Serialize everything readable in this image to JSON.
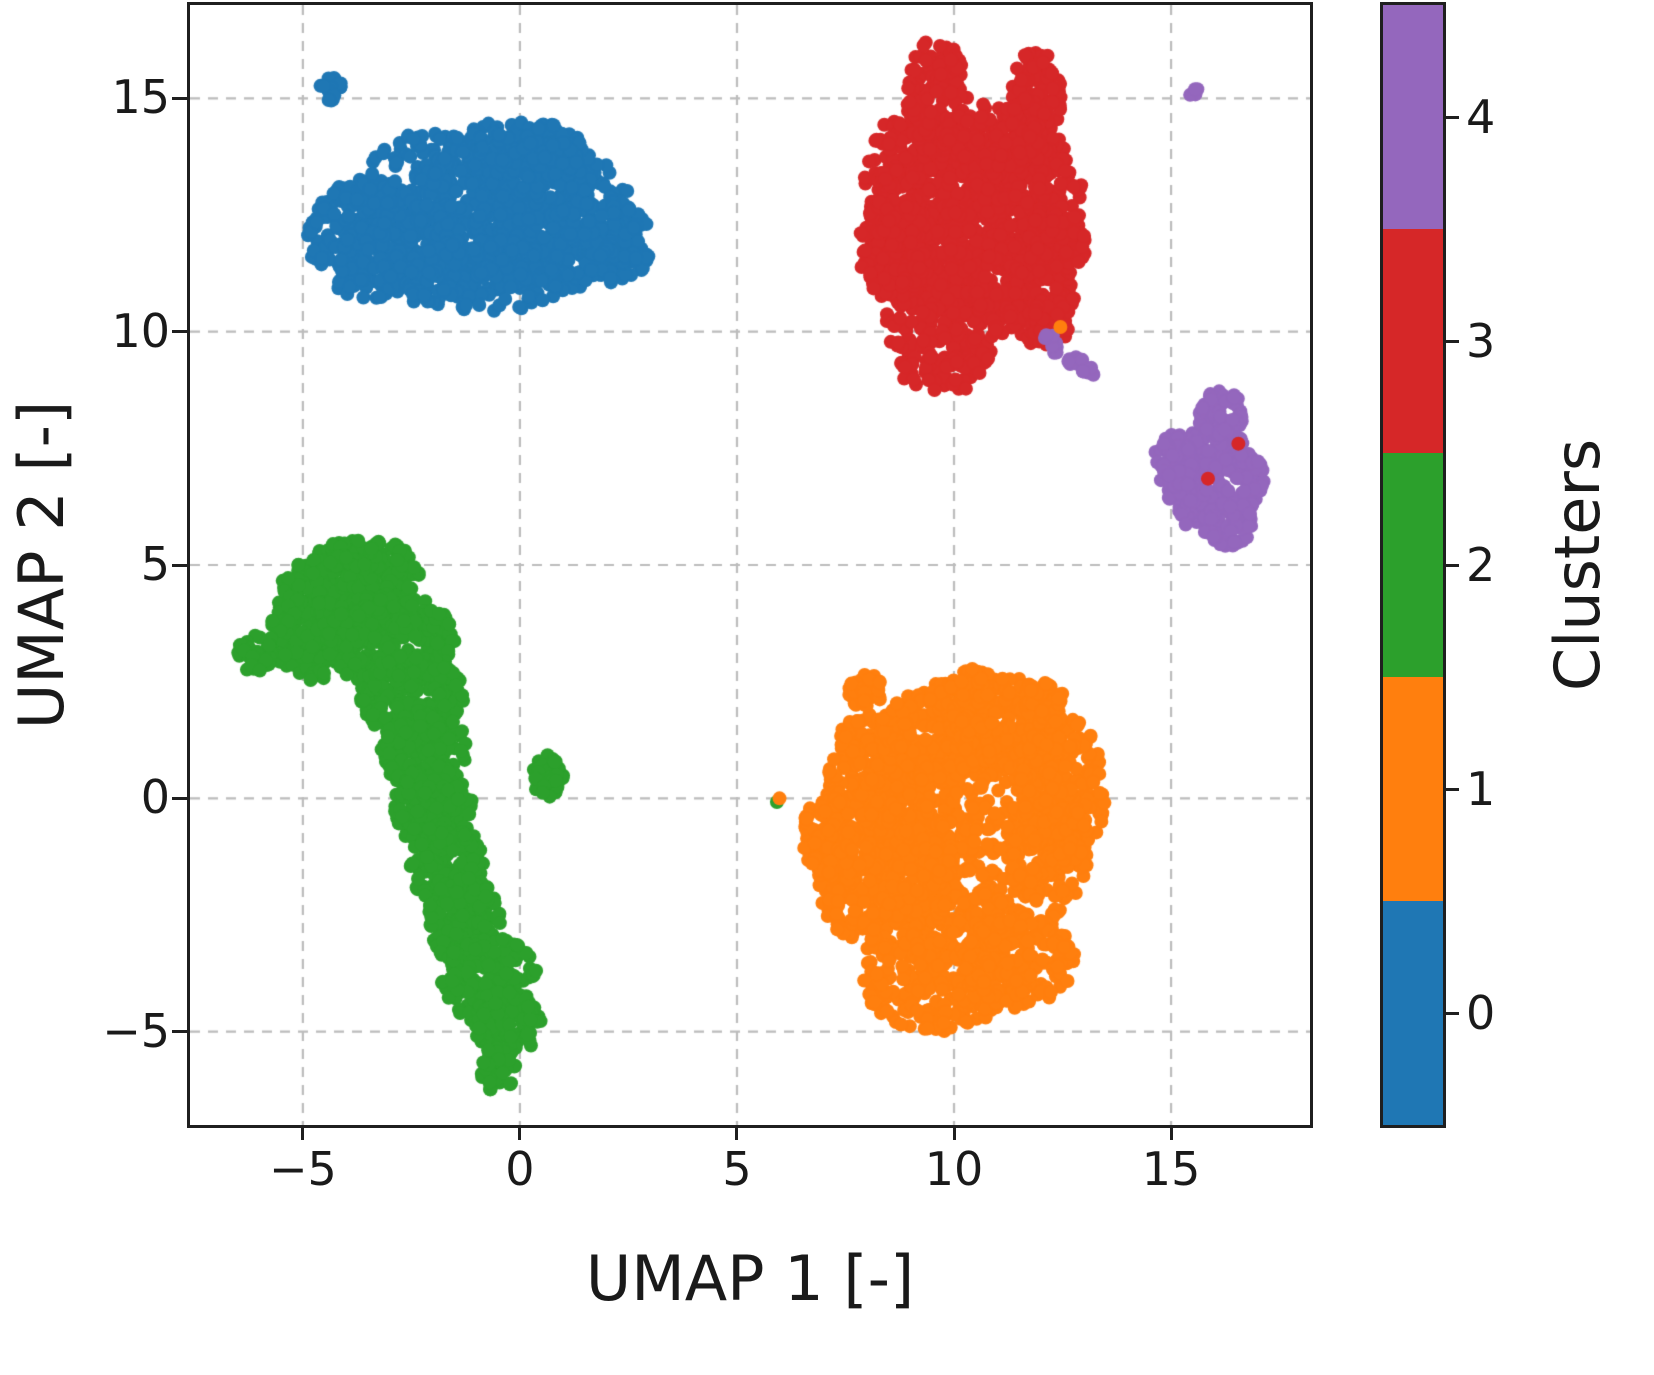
{
  "chart_data": {
    "type": "scatter",
    "title": "",
    "xlabel": "UMAP 1 [-]",
    "ylabel": "UMAP 2 [-]",
    "xlim": [
      -7.6,
      18.2
    ],
    "ylim": [
      -7,
      17
    ],
    "x_ticks": [
      -5,
      0,
      5,
      10,
      15
    ],
    "x_tick_labels": [
      "−5",
      "0",
      "5",
      "10",
      "15"
    ],
    "y_ticks": [
      -5,
      0,
      5,
      10,
      15
    ],
    "y_tick_labels": [
      "−5",
      "0",
      "5",
      "10",
      "15"
    ],
    "grid": true,
    "grid_style": "dashed",
    "legend_position": "colorbar-right",
    "colorbar": {
      "label": "Clusters",
      "ticks": [
        0,
        1,
        2,
        3,
        4
      ],
      "tick_labels": [
        "0",
        "1",
        "2",
        "3",
        "4"
      ],
      "colors": [
        "#1f77b4",
        "#ff7f0e",
        "#2ca02c",
        "#d62728",
        "#9467bd"
      ]
    },
    "clusters": [
      {
        "id": 0,
        "color": "#1f77b4",
        "center": [
          -1.1,
          12.4
        ],
        "blobs": [
          [
            -3.4,
            12.0,
            1.5,
            1.3,
            260
          ],
          [
            -2.0,
            12.6,
            1.8,
            1.7,
            300
          ],
          [
            -0.4,
            12.7,
            2.0,
            1.8,
            340
          ],
          [
            1.1,
            12.4,
            1.6,
            1.5,
            280
          ],
          [
            2.2,
            11.9,
            0.8,
            0.9,
            120
          ],
          [
            -1.0,
            11.2,
            2.2,
            0.8,
            200
          ],
          [
            0.3,
            13.9,
            1.2,
            0.6,
            120
          ],
          [
            -4.35,
            15.2,
            0.28,
            0.25,
            25
          ]
        ]
      },
      {
        "id": 1,
        "color": "#ff7f0e",
        "center": [
          10.3,
          -1.0
        ],
        "blobs": [
          [
            10.5,
            -1.0,
            2.6,
            2.4,
            700
          ],
          [
            8.4,
            -1.5,
            1.6,
            1.8,
            350
          ],
          [
            8.1,
            0.6,
            1.0,
            1.2,
            180
          ],
          [
            9.6,
            1.4,
            1.3,
            1.1,
            220
          ],
          [
            11.2,
            1.6,
            1.3,
            1.0,
            220
          ],
          [
            12.5,
            0.2,
            1.0,
            1.6,
            220
          ],
          [
            9.6,
            -3.9,
            1.7,
            1.1,
            240
          ],
          [
            11.5,
            -3.5,
            1.3,
            1.0,
            180
          ],
          [
            7.1,
            -0.8,
            0.6,
            0.9,
            90
          ],
          [
            7.9,
            2.3,
            0.45,
            0.4,
            45
          ],
          [
            10.4,
            2.4,
            0.5,
            0.4,
            50
          ],
          [
            12.1,
            2.0,
            0.5,
            0.5,
            50
          ]
        ]
      },
      {
        "id": 2,
        "color": "#2ca02c",
        "center": [
          -2.5,
          0.0
        ],
        "blobs": [
          [
            -4.0,
            4.3,
            1.6,
            1.1,
            280
          ],
          [
            -4.8,
            3.4,
            1.1,
            0.9,
            160
          ],
          [
            -3.2,
            4.8,
            0.9,
            0.7,
            120
          ],
          [
            -3.0,
            3.4,
            1.5,
            1.0,
            240
          ],
          [
            -6.1,
            3.1,
            0.45,
            0.4,
            40
          ],
          [
            -2.5,
            2.2,
            1.2,
            0.9,
            200
          ],
          [
            -2.2,
            1.0,
            1.0,
            0.9,
            170
          ],
          [
            -2.0,
            -0.2,
            0.9,
            0.9,
            160
          ],
          [
            -1.7,
            -1.4,
            0.85,
            0.9,
            150
          ],
          [
            -1.3,
            -2.6,
            0.85,
            0.95,
            150
          ],
          [
            -0.7,
            -3.9,
            1.1,
            0.95,
            170
          ],
          [
            -0.3,
            -4.8,
            0.8,
            0.7,
            110
          ],
          [
            -0.5,
            -5.8,
            0.4,
            0.5,
            40
          ],
          [
            0.65,
            0.45,
            0.35,
            0.5,
            45
          ],
          [
            -3.9,
            5.2,
            0.6,
            0.35,
            50
          ]
        ]
      },
      {
        "id": 3,
        "color": "#d62728",
        "center": [
          10.3,
          12.3
        ],
        "blobs": [
          [
            10.2,
            12.3,
            2.2,
            2.0,
            500
          ],
          [
            9.2,
            13.2,
            1.3,
            1.6,
            260
          ],
          [
            11.4,
            12.9,
            1.6,
            1.6,
            300
          ],
          [
            9.6,
            15.0,
            0.7,
            1.3,
            140
          ],
          [
            11.9,
            14.9,
            0.6,
            1.2,
            130
          ],
          [
            9.7,
            10.2,
            1.3,
            1.6,
            240
          ],
          [
            11.6,
            10.8,
            1.2,
            1.1,
            180
          ],
          [
            8.6,
            11.8,
            0.8,
            1.1,
            140
          ],
          [
            12.4,
            11.9,
            0.7,
            0.9,
            100
          ],
          [
            10.9,
            14.2,
            1.1,
            0.7,
            110
          ],
          [
            12.2,
            10.2,
            0.5,
            0.5,
            60
          ]
        ]
      },
      {
        "id": 4,
        "color": "#9467bd",
        "center": [
          16.0,
          6.9
        ],
        "blobs": [
          [
            16.0,
            6.8,
            1.15,
            1.2,
            260
          ],
          [
            16.15,
            8.25,
            0.55,
            0.5,
            60
          ],
          [
            15.1,
            7.2,
            0.5,
            0.6,
            60
          ],
          [
            16.3,
            5.9,
            0.6,
            0.5,
            60
          ],
          [
            12.35,
            9.65,
            0.15,
            0.13,
            6
          ],
          [
            12.8,
            9.4,
            0.18,
            0.15,
            8
          ],
          [
            13.1,
            9.15,
            0.15,
            0.13,
            6
          ],
          [
            12.2,
            9.85,
            0.12,
            0.1,
            4
          ],
          [
            15.55,
            15.1,
            0.12,
            0.11,
            4
          ]
        ]
      }
    ],
    "outliers": [
      {
        "x": 15.85,
        "y": 6.85,
        "color": "#d62728"
      },
      {
        "x": 16.55,
        "y": 7.6,
        "color": "#d62728"
      },
      {
        "x": 12.45,
        "y": 10.1,
        "color": "#ff7f0e"
      },
      {
        "x": 5.92,
        "y": -0.08,
        "color": "#2ca02c"
      },
      {
        "x": 5.98,
        "y": 0.0,
        "color": "#ff7f0e"
      }
    ]
  }
}
